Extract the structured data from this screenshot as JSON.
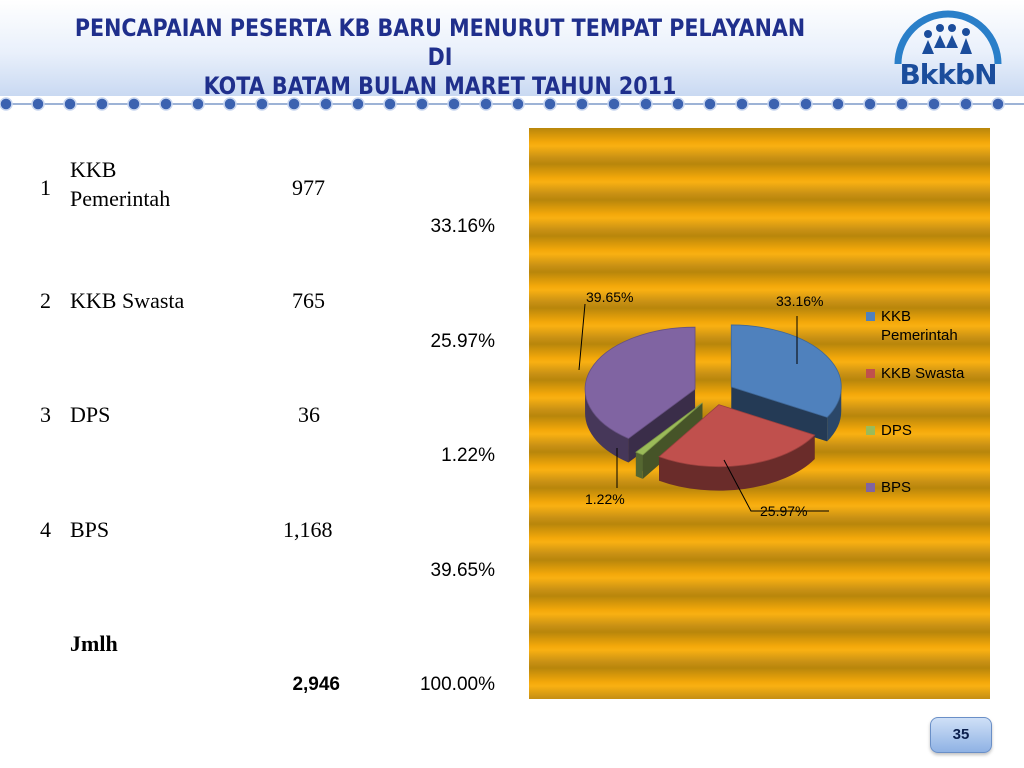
{
  "header": {
    "title_line1": "PENCAPAIAN PESERTA KB BARU MENURUT TEMPAT PELAYANAN DI",
    "title_line2": "KOTA BATAM BULAN MARET TAHUN 2011",
    "logo_text": "BkkbN"
  },
  "table": {
    "rows": [
      {
        "no": "1",
        "name_line1": "KKB",
        "name_line2": "Pemerintah",
        "value": "977",
        "percent": "33.16%"
      },
      {
        "no": "2",
        "name": "KKB Swasta",
        "value": "765",
        "percent": "25.97%"
      },
      {
        "no": "3",
        "name": "DPS",
        "value": "36",
        "percent": "1.22%"
      },
      {
        "no": "4",
        "name": "BPS",
        "value": "1,168",
        "percent": "39.65%"
      }
    ],
    "total_label": "Jmlh",
    "total_value": "2,946",
    "total_percent": "100.00%"
  },
  "chart_data": {
    "type": "pie",
    "categories": [
      "KKB Pemerintah",
      "KKB Swasta",
      "DPS",
      "BPS"
    ],
    "values": [
      33.16,
      25.97,
      1.22,
      39.65
    ],
    "data_labels": [
      "33.16%",
      "25.97%",
      "1.22%",
      "39.65%"
    ],
    "colors": [
      "#4f81bd",
      "#c0504d",
      "#9bbb59",
      "#8064a2"
    ],
    "legend_position": "right",
    "legend_labels": {
      "l1a": "KKB",
      "l1b": "Pemerintah",
      "l2": "KKB Swasta",
      "l3": "DPS",
      "l4": "BPS"
    }
  },
  "page_number": "35"
}
